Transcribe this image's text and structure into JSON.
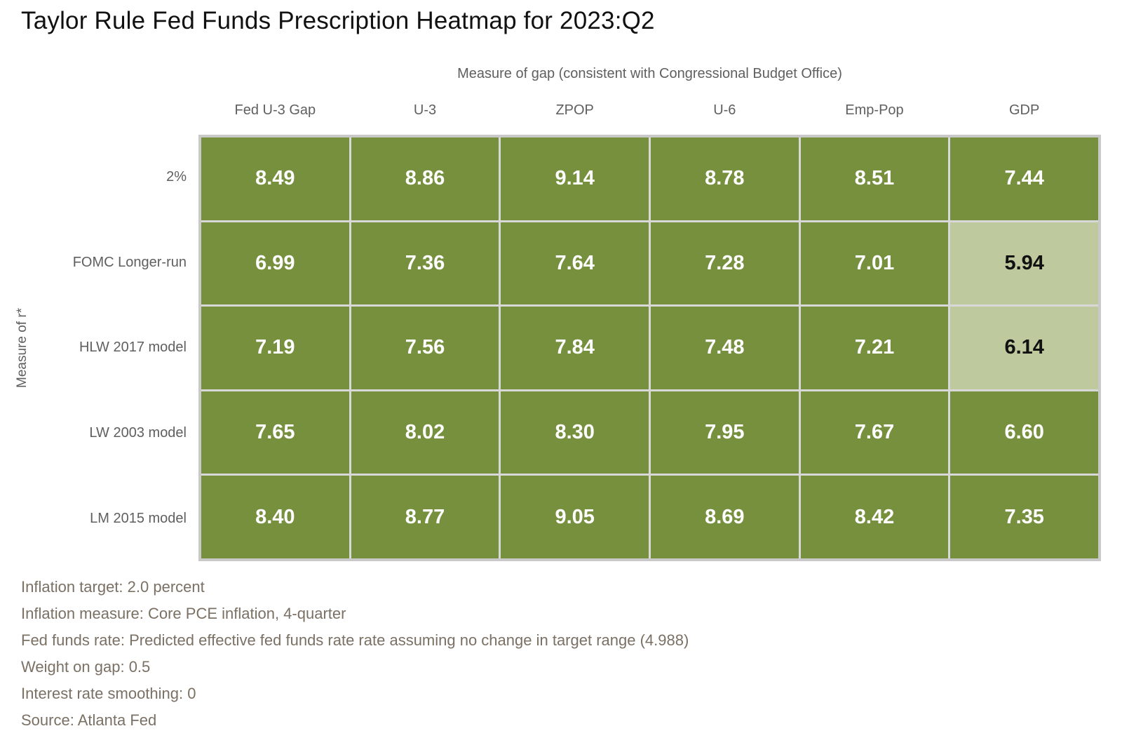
{
  "header": {
    "title": "Taylor Rule Fed Funds Prescription Heatmap for 2023:Q2"
  },
  "chart_data": {
    "type": "heatmap",
    "title": "Taylor Rule Fed Funds Prescription Heatmap for 2023:Q2",
    "xlabel": "Measure of gap (consistent with Congressional Budget Office)",
    "ylabel": "Measure of r*",
    "categories": [
      "Fed U-3 Gap",
      "U-3",
      "ZPOP",
      "U-6",
      "Emp-Pop",
      "GDP"
    ],
    "rows": [
      "2%",
      "FOMC Longer-run",
      "HLW 2017 model",
      "LW 2003 model",
      "LM 2015 model"
    ],
    "values": [
      [
        "8.49",
        "8.86",
        "9.14",
        "8.78",
        "8.51",
        "7.44"
      ],
      [
        "6.99",
        "7.36",
        "7.64",
        "7.28",
        "7.01",
        "5.94"
      ],
      [
        "7.19",
        "7.56",
        "7.84",
        "7.48",
        "7.21",
        "6.14"
      ],
      [
        "7.65",
        "8.02",
        "8.30",
        "7.95",
        "7.67",
        "6.60"
      ],
      [
        "8.40",
        "8.77",
        "9.05",
        "8.69",
        "8.42",
        "7.35"
      ]
    ],
    "light_cells": [
      [
        1,
        5
      ],
      [
        2,
        5
      ]
    ],
    "colors": {
      "cell_dark": "#76903E",
      "cell_light": "#BEC99D",
      "grid_line": "#d8d8d8",
      "outer_border": "#c9c9c9",
      "value_text_on_dark": "#ffffff",
      "value_text_on_light": "#111111",
      "axis_text": "#5f5f5f",
      "footnote_text": "#7b7064"
    },
    "legend_position": "none",
    "grid": true
  },
  "footnotes": [
    "Inflation target: 2.0 percent",
    "Inflation measure: Core PCE inflation, 4-quarter",
    "Fed funds rate: Predicted effective fed funds rate rate assuming no change in target range (4.988)",
    "Weight on gap: 0.5",
    "Interest rate smoothing: 0",
    "Source: Atlanta Fed"
  ]
}
